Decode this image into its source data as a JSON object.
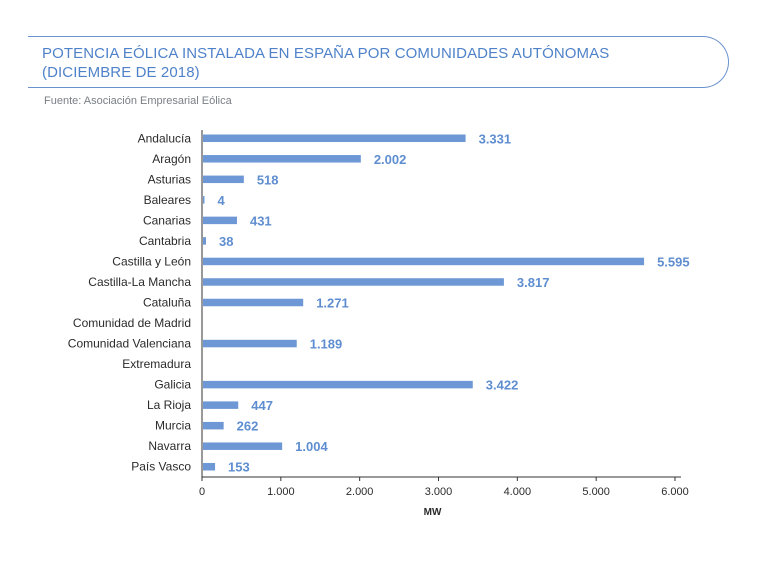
{
  "header": {
    "title_line1": "POTENCIA EÓLICA INSTALADA EN ESPAÑA POR COMUNIDADES AUTÓNOMAS",
    "title_line2": "(DICIEMBRE DE 2018)",
    "source": "Fuente: Asociación Empresarial Eólica"
  },
  "colors": {
    "bar": "#6e98d5",
    "accent": "#4f82c9",
    "value_label": "#5f8ed0"
  },
  "chart_data": {
    "type": "bar",
    "orientation": "horizontal",
    "title": "POTENCIA EÓLICA INSTALADA EN ESPAÑA POR COMUNIDADES AUTÓNOMAS (DICIEMBRE DE 2018)",
    "xlabel": "MW",
    "ylabel": "",
    "xlim": [
      0,
      6000
    ],
    "xticks": [
      0,
      1000,
      2000,
      3000,
      4000,
      5000,
      6000
    ],
    "xtick_labels": [
      "0",
      "1.000",
      "2.000",
      "3.000",
      "4.000",
      "5.000",
      "6.000"
    ],
    "categories": [
      "Andalucía",
      "Aragón",
      "Asturias",
      "Baleares",
      "Canarias",
      "Cantabria",
      "Castilla y León",
      "Castilla-La Mancha",
      "Cataluña",
      "Comunidad de Madrid",
      "Comunidad Valenciana",
      "Extremadura",
      "Galicia",
      "La Rioja",
      "Murcia",
      "Navarra",
      "País Vasco"
    ],
    "values": [
      3331,
      2002,
      518,
      4,
      431,
      38,
      5595,
      3817,
      1271,
      null,
      1189,
      null,
      3422,
      447,
      262,
      1004,
      153
    ],
    "value_labels": [
      "3.331",
      "2.002",
      "518",
      "4",
      "431",
      "38",
      "5.595",
      "3.817",
      "1.271",
      "",
      "1.189",
      "",
      "3.422",
      "447",
      "262",
      "1.004",
      "153"
    ]
  }
}
